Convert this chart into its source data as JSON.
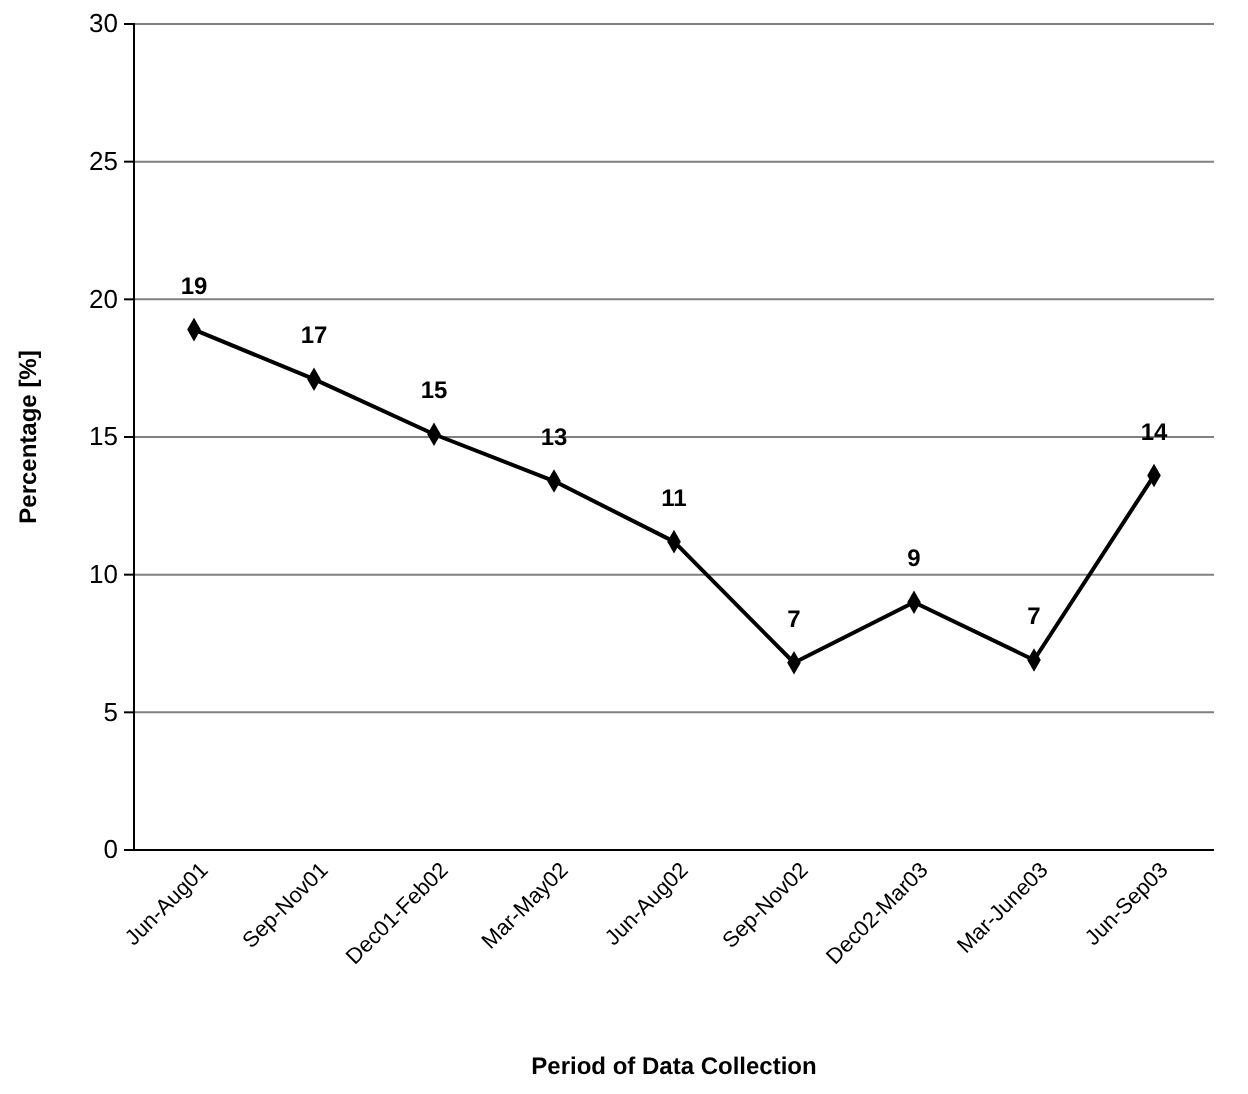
{
  "chart_data": {
    "type": "line",
    "xlabel": "Period of Data Collection",
    "ylabel": "Percentage [%]",
    "categories": [
      "Jun-Aug01",
      "Sep-Nov01",
      "Dec01-Feb02",
      "Mar-May02",
      "Jun-Aug02",
      "Sep-Nov02",
      "Dec02-Mar03",
      "Mar-June03",
      "Jun-Sep03"
    ],
    "series": [
      {
        "color": "#000000",
        "values": [
          18.9,
          17.1,
          15.1,
          13.4,
          11.2,
          6.8,
          9.0,
          6.9,
          13.6
        ],
        "value_labels": [
          "19",
          "17",
          "15",
          "13",
          "11",
          "7",
          "9",
          "7",
          "14"
        ]
      }
    ],
    "ylim": [
      0,
      30
    ],
    "yticks": [
      0,
      5,
      10,
      15,
      20,
      25,
      30
    ],
    "grid": "y",
    "marker": "diamond",
    "line_style": "solid"
  }
}
